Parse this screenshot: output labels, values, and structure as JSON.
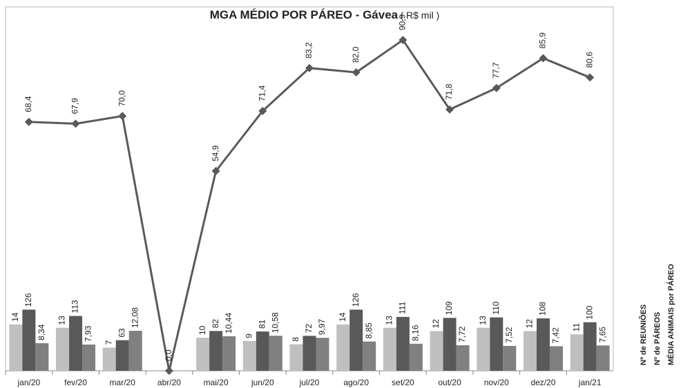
{
  "chart_data": {
    "type": "bar-line",
    "title": "MGA MÉDIO POR PÁREO - Gávea",
    "subtitle": "( R$ mil )",
    "categories": [
      "jan/20",
      "fev/20",
      "mar/20",
      "abr/20",
      "mai/20",
      "jun/20",
      "jul/20",
      "ago/20",
      "set/20",
      "out/20",
      "nov/20",
      "dez/20",
      "jan/21"
    ],
    "ylim": [
      0,
      100
    ],
    "series": [
      {
        "name": "Nº de REUNIÕES",
        "type": "bar",
        "color": "#bfbfbf",
        "ylim": [
          0,
          110
        ],
        "values": [
          14,
          13,
          7,
          null,
          10,
          9,
          8,
          14,
          13,
          12,
          13,
          12,
          11
        ]
      },
      {
        "name": "Nº de PÁREOS",
        "type": "bar",
        "color": "#595959",
        "ylim": [
          0,
          750
        ],
        "values": [
          126,
          113,
          63,
          null,
          82,
          81,
          72,
          126,
          111,
          109,
          110,
          108,
          100
        ]
      },
      {
        "name": "MÉDIA ANIMAIS por PÁREO",
        "type": "bar",
        "color": "#808080",
        "ylim": [
          0,
          110
        ],
        "values": [
          8.34,
          7.93,
          12.08,
          null,
          10.44,
          10.58,
          9.97,
          8.85,
          8.16,
          7.72,
          7.52,
          7.42,
          7.65
        ],
        "value_labels": [
          "8,34",
          "7,93",
          "12,08",
          null,
          "10,44",
          "10,58",
          "9,97",
          "8,85",
          "8,16",
          "7,72",
          "7,52",
          "7,42",
          "7,65"
        ]
      },
      {
        "type": "line",
        "color": "#595959",
        "ylim": [
          0,
          100
        ],
        "values": [
          68.4,
          67.9,
          70.0,
          0.0,
          54.9,
          71.4,
          83.2,
          82.0,
          90.9,
          71.8,
          77.7,
          85.9,
          80.6
        ],
        "value_labels": [
          "68,4",
          "67,9",
          "70,0",
          "0,0",
          "54,9",
          "71,4",
          "83,2",
          "82,0",
          "90,9",
          "71,8",
          "77,7",
          "85,9",
          "80,6"
        ]
      }
    ]
  }
}
